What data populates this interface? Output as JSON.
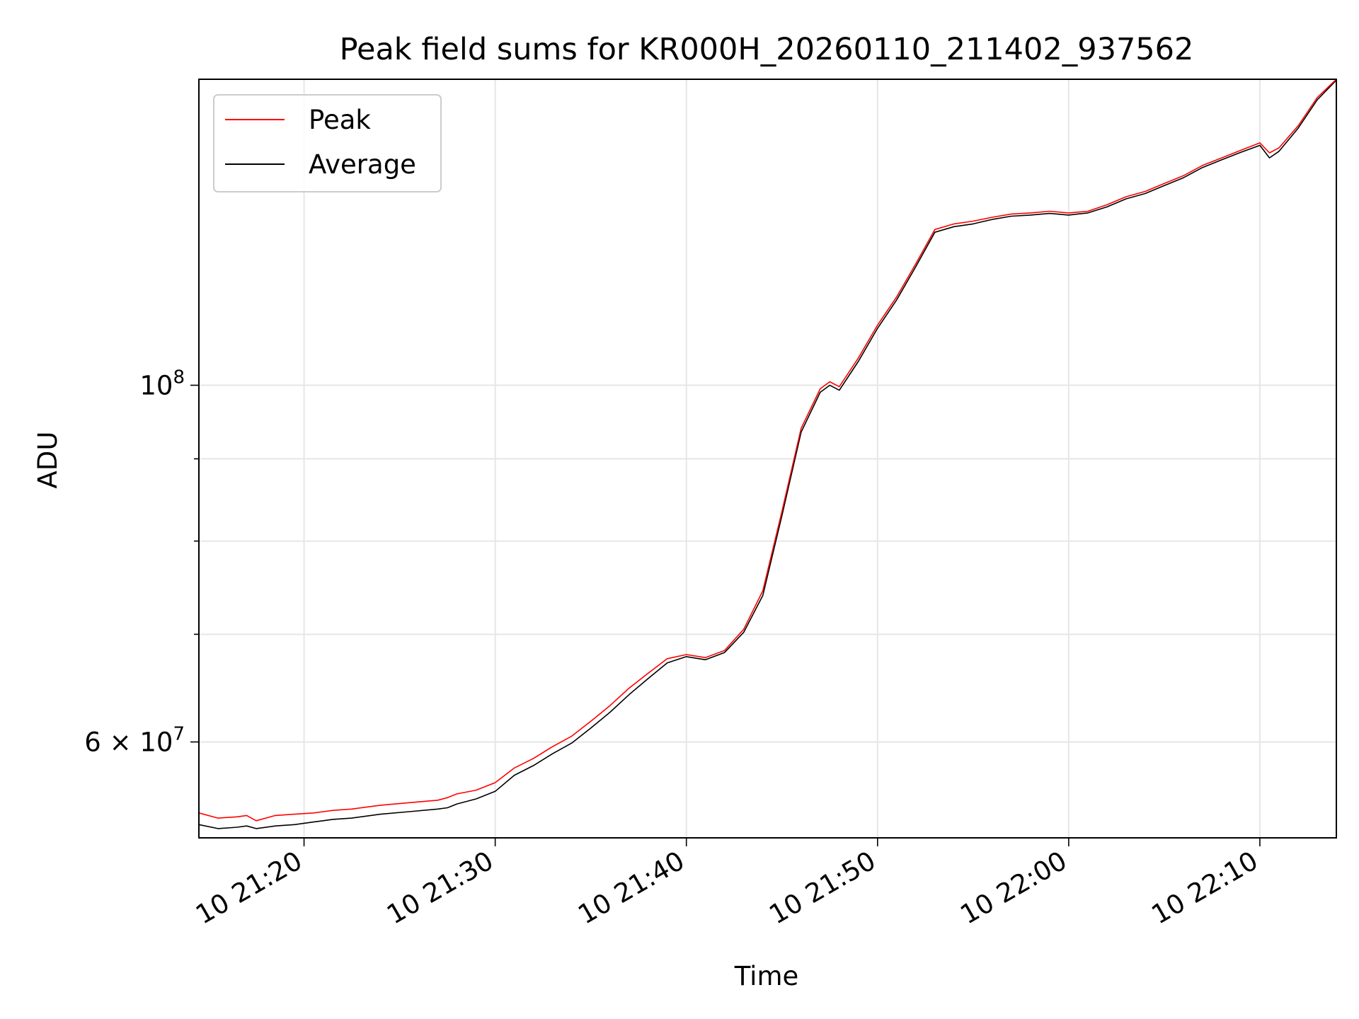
{
  "chart_data": {
    "type": "line",
    "title": "Peak field sums for KR000H_20260110_211402_937562",
    "xlabel": "Time",
    "ylabel": "ADU",
    "yscale": "log",
    "grid": true,
    "legend_position": "top-left",
    "x_unit": "time (HH:MM)",
    "xlim": [
      "21:14:30",
      "22:14:00"
    ],
    "ylim": [
      52300000,
      155000000
    ],
    "x_ticks": [
      {
        "value": "21:20",
        "label": "10 21:20"
      },
      {
        "value": "21:30",
        "label": "10 21:30"
      },
      {
        "value": "21:40",
        "label": "10 21:40"
      },
      {
        "value": "21:50",
        "label": "10 21:50"
      },
      {
        "value": "22:00",
        "label": "10 22:00"
      },
      {
        "value": "22:10",
        "label": "10 22:10"
      }
    ],
    "y_major_ticks": [
      {
        "value": 60000000,
        "base": "6 × 10",
        "exp": "7"
      },
      {
        "value": 100000000,
        "base": "10",
        "exp": "8"
      }
    ],
    "y_minor_ticks": [
      70000000,
      80000000,
      90000000
    ],
    "colors": {
      "Peak": "#ff0000",
      "Average": "#000000"
    },
    "series": [
      {
        "name": "Peak",
        "x": [
          "21:14:30",
          "21:15:30",
          "21:16:30",
          "21:17:00",
          "21:17:30",
          "21:18:30",
          "21:19:30",
          "21:20:30",
          "21:21:00",
          "21:21:30",
          "21:22:30",
          "21:24:00",
          "21:25:30",
          "21:27:00",
          "21:27:30",
          "21:28:00",
          "21:29:00",
          "21:30:00",
          "21:31:00",
          "21:32:00",
          "21:33:00",
          "21:34:00",
          "21:35:00",
          "21:36:00",
          "21:37:00",
          "21:38:00",
          "21:39:00",
          "21:40:00",
          "21:41:00",
          "21:42:00",
          "21:43:00",
          "21:44:00",
          "21:45:00",
          "21:46:00",
          "21:47:00",
          "21:47:30",
          "21:48:00",
          "21:49:00",
          "21:50:00",
          "21:51:00",
          "21:52:00",
          "21:53:00",
          "21:54:00",
          "21:55:00",
          "21:56:00",
          "21:57:00",
          "21:58:00",
          "21:59:00",
          "22:00:00",
          "22:01:00",
          "22:02:00",
          "22:03:00",
          "22:04:00",
          "22:05:00",
          "22:06:00",
          "22:07:00",
          "22:08:00",
          "22:09:00",
          "22:10:00",
          "22:10:30",
          "22:11:00",
          "22:12:00",
          "22:13:00",
          "22:14:00"
        ],
        "values": [
          54200000,
          53800000,
          53900000,
          54000000,
          53600000,
          54000000,
          54100000,
          54200000,
          54300000,
          54400000,
          54500000,
          54800000,
          55000000,
          55200000,
          55400000,
          55700000,
          56000000,
          56600000,
          57800000,
          58600000,
          59600000,
          60500000,
          61800000,
          63200000,
          64800000,
          66200000,
          67600000,
          68000000,
          67700000,
          68400000,
          70500000,
          74500000,
          83500000,
          94000000,
          99500000,
          100500000,
          99800000,
          104000000,
          109000000,
          113500000,
          119000000,
          125000000,
          126000000,
          126500000,
          127200000,
          127800000,
          128000000,
          128300000,
          128000000,
          128300000,
          129500000,
          131000000,
          132000000,
          133500000,
          135000000,
          137000000,
          138500000,
          140000000,
          141500000,
          139500000,
          140500000,
          145000000,
          151000000,
          155000000
        ]
      },
      {
        "name": "Average",
        "x": [
          "21:14:30",
          "21:15:30",
          "21:16:30",
          "21:17:00",
          "21:17:30",
          "21:18:30",
          "21:19:30",
          "21:20:30",
          "21:21:00",
          "21:21:30",
          "21:22:30",
          "21:24:00",
          "21:25:30",
          "21:27:00",
          "21:27:30",
          "21:28:00",
          "21:29:00",
          "21:30:00",
          "21:31:00",
          "21:32:00",
          "21:33:00",
          "21:34:00",
          "21:35:00",
          "21:36:00",
          "21:37:00",
          "21:38:00",
          "21:39:00",
          "21:40:00",
          "21:41:00",
          "21:42:00",
          "21:43:00",
          "21:44:00",
          "21:45:00",
          "21:46:00",
          "21:47:00",
          "21:47:30",
          "21:48:00",
          "21:49:00",
          "21:50:00",
          "21:51:00",
          "21:52:00",
          "21:53:00",
          "21:54:00",
          "21:55:00",
          "21:56:00",
          "21:57:00",
          "21:58:00",
          "21:59:00",
          "22:00:00",
          "22:01:00",
          "22:02:00",
          "22:03:00",
          "22:04:00",
          "22:05:00",
          "22:06:00",
          "22:07:00",
          "22:08:00",
          "22:09:00",
          "22:10:00",
          "22:10:30",
          "22:11:00",
          "22:12:00",
          "22:13:00",
          "22:14:00"
        ],
        "values": [
          53300000,
          53000000,
          53100000,
          53200000,
          53000000,
          53200000,
          53300000,
          53500000,
          53600000,
          53700000,
          53800000,
          54100000,
          54300000,
          54500000,
          54600000,
          54900000,
          55300000,
          55900000,
          57200000,
          58000000,
          59000000,
          59900000,
          61200000,
          62600000,
          64200000,
          65700000,
          67200000,
          67800000,
          67500000,
          68200000,
          70200000,
          74000000,
          83000000,
          93500000,
          99000000,
          100000000,
          99300000,
          103500000,
          108500000,
          113000000,
          118500000,
          124500000,
          125500000,
          126000000,
          126800000,
          127400000,
          127600000,
          127900000,
          127600000,
          128000000,
          129100000,
          130600000,
          131600000,
          133100000,
          134600000,
          136600000,
          138100000,
          139600000,
          141000000,
          138500000,
          139800000,
          144500000,
          150500000,
          154800000
        ]
      }
    ]
  },
  "legend": {
    "items": [
      {
        "label": "Peak",
        "color": "#ff0000"
      },
      {
        "label": "Average",
        "color": "#000000"
      }
    ]
  }
}
